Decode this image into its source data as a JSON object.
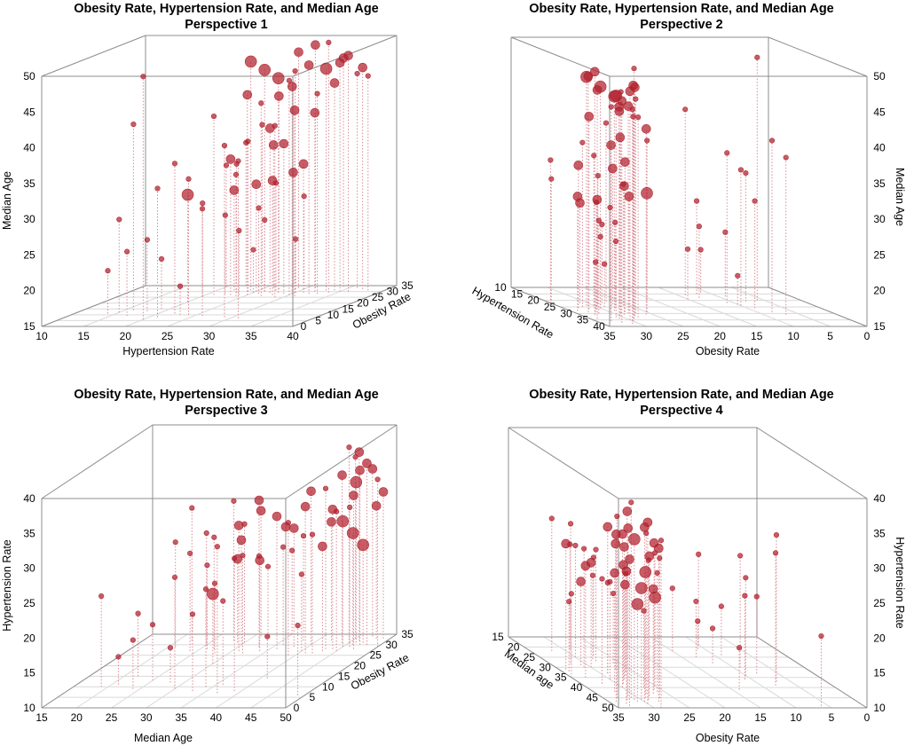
{
  "chart_data": {
    "type": "scatter3d",
    "common": {
      "title": "Obesity Rate, Hypertension Rate, and Median Age",
      "point_color": "#b0202c",
      "drop_line_color": "#d98a92",
      "box_color": "#8c8c8c",
      "grid_color": "#d9d9d9"
    },
    "panels": [
      {
        "subtitle": "Perspective 1",
        "bottom_axis": {
          "label": "Hypertension Rate",
          "ticks": [
            "10",
            "15",
            "20",
            "25",
            "30",
            "35",
            "40"
          ]
        },
        "depth_axis": {
          "label": "Obesity Rate",
          "ticks": [
            "0",
            "5",
            "10",
            "15",
            "20",
            "25",
            "30",
            "35"
          ]
        },
        "vertical_axis": {
          "label": "Median Age",
          "side": "left",
          "ticks": [
            "15",
            "20",
            "25",
            "30",
            "35",
            "40",
            "45",
            "50"
          ]
        }
      },
      {
        "subtitle": "Perspective 2",
        "bottom_axis": {
          "label": "Obesity Rate",
          "ticks": [
            "35",
            "30",
            "25",
            "20",
            "15",
            "10",
            "5",
            "0"
          ]
        },
        "depth_axis": {
          "label": "Hypertension Rate",
          "ticks": [
            "40",
            "35",
            "30",
            "25",
            "20",
            "15",
            "10"
          ]
        },
        "vertical_axis": {
          "label": "Median Age",
          "side": "right",
          "ticks": [
            "15",
            "20",
            "25",
            "30",
            "35",
            "40",
            "45",
            "50"
          ]
        }
      },
      {
        "subtitle": "Perspective 3",
        "bottom_axis": {
          "label": "Median Age",
          "ticks": [
            "15",
            "20",
            "25",
            "30",
            "35",
            "40",
            "45",
            "50"
          ]
        },
        "depth_axis": {
          "label": "Obesity Rate",
          "ticks": [
            "0",
            "5",
            "10",
            "15",
            "20",
            "25",
            "30",
            "35"
          ]
        },
        "vertical_axis": {
          "label": "Hypertension Rate",
          "side": "left",
          "ticks": [
            "10",
            "15",
            "20",
            "25",
            "30",
            "35",
            "40"
          ]
        }
      },
      {
        "subtitle": "Perspective 4",
        "bottom_axis": {
          "label": "Obesity Rate",
          "ticks": [
            "35",
            "30",
            "25",
            "20",
            "15",
            "10",
            "5",
            "0"
          ]
        },
        "depth_axis": {
          "label": "Median age",
          "ticks": [
            "50",
            "45",
            "40",
            "35",
            "30",
            "25",
            "20",
            "15"
          ]
        },
        "vertical_axis": {
          "label": "Hypertension Rate",
          "side": "right",
          "ticks": [
            "10",
            "15",
            "20",
            "25",
            "30",
            "35",
            "40"
          ]
        }
      }
    ],
    "points_note": "obesity %, hypertension %, median age (years), marker size class 1-3",
    "points": [
      [
        31,
        24,
        47,
        3
      ],
      [
        30,
        26,
        46,
        3
      ],
      [
        29,
        28,
        45,
        3
      ],
      [
        28,
        30,
        44,
        2
      ],
      [
        32,
        27,
        42,
        2
      ],
      [
        33,
        29,
        48,
        2
      ],
      [
        27,
        25,
        43,
        2
      ],
      [
        26,
        31,
        41,
        2
      ],
      [
        31,
        33,
        46,
        3
      ],
      [
        30,
        35,
        47,
        2
      ],
      [
        29,
        27,
        38,
        2
      ],
      [
        28,
        29,
        36,
        2
      ],
      [
        27,
        23,
        34,
        2
      ],
      [
        33,
        26,
        35,
        2
      ],
      [
        34,
        28,
        31,
        2
      ],
      [
        30,
        25,
        30,
        2
      ],
      [
        29,
        31,
        33,
        2
      ],
      [
        31,
        22,
        29,
        2
      ],
      [
        26,
        24,
        32,
        1
      ],
      [
        28,
        26,
        27,
        1
      ],
      [
        32,
        30,
        28,
        1
      ],
      [
        27,
        28,
        31,
        2
      ],
      [
        30,
        32,
        40,
        2
      ],
      [
        31,
        34,
        44,
        2
      ],
      [
        33,
        36,
        45,
        1
      ],
      [
        29,
        30,
        46,
        1
      ],
      [
        28,
        33,
        43,
        1
      ],
      [
        26,
        27,
        42,
        1
      ],
      [
        25,
        29,
        39,
        1
      ],
      [
        30,
        24,
        36,
        1
      ],
      [
        32,
        25,
        38,
        1
      ],
      [
        27,
        21,
        40,
        1
      ],
      [
        29,
        23,
        33,
        1
      ],
      [
        31,
        27,
        30,
        1
      ],
      [
        28,
        22,
        26,
        1
      ],
      [
        26,
        20,
        28,
        1
      ],
      [
        30,
        26,
        25,
        1
      ],
      [
        32,
        29,
        22,
        1
      ],
      [
        27,
        24,
        24,
        1
      ],
      [
        29,
        25,
        21,
        1
      ],
      [
        33,
        31,
        49,
        2
      ],
      [
        34,
        34,
        47,
        2
      ],
      [
        32,
        37,
        46,
        2
      ],
      [
        31,
        38,
        45,
        1
      ],
      [
        30,
        36,
        48,
        2
      ],
      [
        29,
        34,
        50,
        1
      ],
      [
        28,
        32,
        47,
        2
      ],
      [
        27,
        30,
        45,
        1
      ],
      [
        35,
        22,
        35,
        1
      ],
      [
        34,
        20,
        32,
        1
      ],
      [
        21,
        20,
        30,
        3
      ],
      [
        14,
        16,
        41,
        1
      ],
      [
        12,
        15,
        28,
        1
      ],
      [
        11,
        22,
        36,
        1
      ],
      [
        10,
        24,
        34,
        1
      ],
      [
        9,
        26,
        30,
        1
      ],
      [
        8,
        29,
        39,
        1
      ],
      [
        7,
        31,
        37,
        1
      ],
      [
        13,
        18,
        25,
        1
      ],
      [
        15,
        19,
        22,
        1
      ],
      [
        6,
        20,
        49,
        1
      ],
      [
        9,
        17,
        24,
        1
      ],
      [
        11,
        14,
        21,
        1
      ],
      [
        8,
        21,
        33,
        1
      ],
      [
        10,
        23,
        19,
        1
      ]
    ]
  }
}
